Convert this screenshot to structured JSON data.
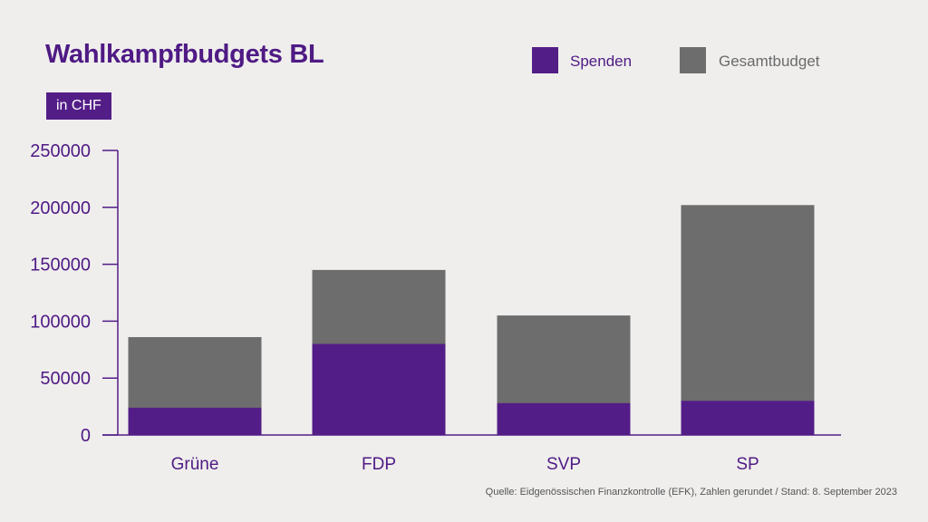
{
  "header": {
    "title": "Wahlkampfbudgets BL",
    "unit_badge": "in CHF"
  },
  "legend": {
    "spenden_label": "Spenden",
    "gesamt_label": "Gesamtbudget"
  },
  "colors": {
    "spenden": "#531d87",
    "gesamtbudget": "#6d6d6d",
    "axis": "#531d87",
    "background": "#efeeed"
  },
  "chart_data": {
    "type": "bar",
    "stacked": false,
    "overlay": true,
    "title": "Wahlkampfbudgets BL",
    "subtitle": "in CHF",
    "categories": [
      "Grüne",
      "FDP",
      "SVP",
      "SP"
    ],
    "series": [
      {
        "name": "Gesamtbudget",
        "values": [
          86000,
          145000,
          105000,
          202000
        ]
      },
      {
        "name": "Spenden",
        "values": [
          24000,
          80000,
          28000,
          30000
        ]
      }
    ],
    "xlabel": "",
    "ylabel": "",
    "ylim": [
      0,
      250000
    ],
    "yticks": [
      0,
      50000,
      100000,
      150000,
      200000,
      250000
    ],
    "ytick_labels": [
      "0",
      "50000",
      "100000",
      "150000",
      "200000",
      "250000"
    ],
    "legend_position": "top-right",
    "grid": false
  },
  "footer": {
    "source": "Quelle: Eidgenössischen Finanzkontrolle (EFK), Zahlen gerundet / Stand: 8. September 2023"
  }
}
